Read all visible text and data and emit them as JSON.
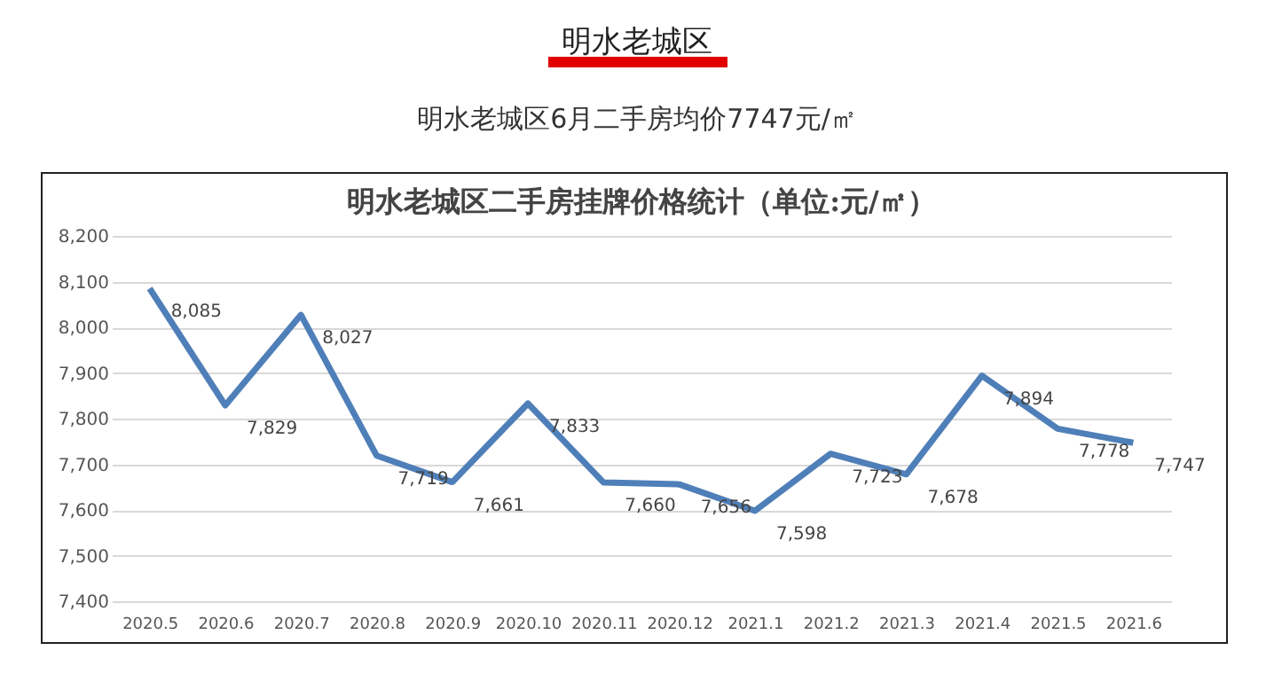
{
  "chart_data": {
    "type": "line",
    "title": "明水老城区",
    "subtitle": "明水老城区6月二手房均价7747元/㎡",
    "annotations": [
      "明水老城区二手房挂牌价格统计（单位:元/㎡）"
    ],
    "categories": [
      "2020.5",
      "2020.6",
      "2020.7",
      "2020.8",
      "2020.9",
      "2020.10",
      "2020.11",
      "2020.12",
      "2021.1",
      "2021.2",
      "2021.3",
      "2021.4",
      "2021.5",
      "2021.6"
    ],
    "series": [
      {
        "color": "#4f7fb8",
        "values": [
          8085,
          7829,
          8027,
          7719,
          7661,
          7833,
          7660,
          7656,
          7598,
          7723,
          7678,
          7894,
          7778,
          7747
        ],
        "value_labels": [
          "8,085",
          "7,829",
          "8,027",
          "7,719",
          "7,661",
          "7,833",
          "7,660",
          "7,656",
          "7,598",
          "7,723",
          "7,678",
          "7,894",
          "7,778",
          "7,747"
        ]
      }
    ],
    "ylim": [
      7400,
      8200
    ],
    "yticks": [
      {
        "value": 7400,
        "label": "7,400"
      },
      {
        "value": 7500,
        "label": "7,500"
      },
      {
        "value": 7600,
        "label": "7,600"
      },
      {
        "value": 7700,
        "label": "7,700"
      },
      {
        "value": 7800,
        "label": "7,800"
      },
      {
        "value": 7900,
        "label": "7,900"
      },
      {
        "value": 8000,
        "label": "8,000"
      },
      {
        "value": 8100,
        "label": "8,100"
      },
      {
        "value": 8200,
        "label": "8,200"
      }
    ],
    "grid": "y",
    "marker": "none",
    "line_style": "solid",
    "legend": false
  }
}
